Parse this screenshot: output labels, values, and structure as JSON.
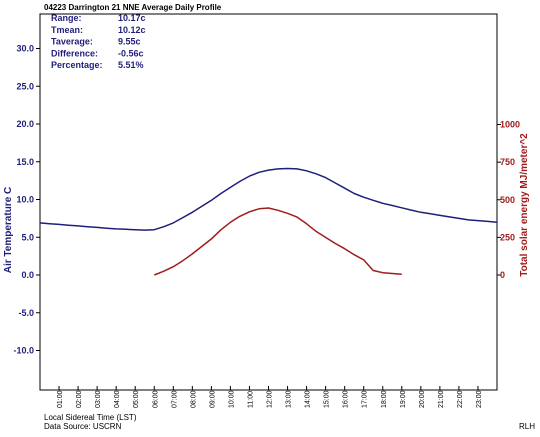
{
  "chart_data": {
    "type": "line",
    "title": "04223 Darrington 21 NNE Average Daily Profile",
    "stats": [
      {
        "label": "Range:",
        "value": "10.17c"
      },
      {
        "label": "Tmean:",
        "value": "10.12c"
      },
      {
        "label": "Taverage:",
        "value": "9.55c"
      },
      {
        "label": "Difference:",
        "value": "-0.56c"
      },
      {
        "label": "Percentage:",
        "value": "5.51%"
      }
    ],
    "xlabel": "Local Sidereal Time (LST)",
    "xticks": [
      "01:00",
      "02:00",
      "03:00",
      "04:00",
      "05:00",
      "06:00",
      "07:00",
      "08:00",
      "09:00",
      "10:00",
      "11:00",
      "12:00",
      "13:00",
      "14:00",
      "15:00",
      "16:00",
      "17:00",
      "18:00",
      "19:00",
      "20:00",
      "21:00",
      "22:00",
      "23:00"
    ],
    "xlim": [
      0,
      24
    ],
    "ylabel_left": "Air Temperature C",
    "ylim_left": [
      -15,
      30
    ],
    "yticks_left": [
      "30.0",
      "25.0",
      "20.0",
      "15.0",
      "10.0",
      "5.0",
      "0.0",
      "-5.0",
      "-10.0"
    ],
    "ylabel_right": "Total solar energy MJ/meter^2",
    "ylim_right": [
      0,
      1000
    ],
    "yticks_right": [
      "1000",
      "750",
      "500",
      "250",
      "0"
    ],
    "grid": false,
    "footer_source": "Data Source: USCRN",
    "footer_initials": "RLH",
    "colors": {
      "temperature": "#1f1f7a",
      "solar": "#a01c1c",
      "left_axis_text": "#1f1f7a",
      "right_axis_text": "#a01c1c"
    },
    "series": [
      {
        "axis": "left",
        "x": [
          0,
          0.5,
          1,
          1.5,
          2,
          2.5,
          3,
          3.5,
          4,
          4.5,
          5,
          5.5,
          6,
          6.5,
          7,
          7.5,
          8,
          8.5,
          9,
          9.5,
          10,
          10.5,
          11,
          11.5,
          12,
          12.5,
          13,
          13.5,
          14,
          14.5,
          15,
          15.5,
          16,
          16.5,
          17,
          17.5,
          18,
          18.5,
          19,
          19.5,
          20,
          20.5,
          21,
          21.5,
          22,
          22.5,
          23,
          23.5,
          24
        ],
        "values": [
          6.9,
          6.8,
          6.7,
          6.6,
          6.5,
          6.4,
          6.3,
          6.2,
          6.1,
          6.05,
          6.0,
          5.95,
          6.0,
          6.4,
          6.9,
          7.6,
          8.3,
          9.1,
          9.9,
          10.8,
          11.6,
          12.4,
          13.1,
          13.6,
          13.9,
          14.05,
          14.1,
          14.05,
          13.8,
          13.4,
          12.9,
          12.2,
          11.5,
          10.8,
          10.3,
          9.9,
          9.5,
          9.2,
          8.9,
          8.6,
          8.3,
          8.1,
          7.9,
          7.7,
          7.5,
          7.3,
          7.2,
          7.1,
          7.0
        ]
      },
      {
        "axis": "right",
        "x": [
          6,
          6.5,
          7,
          7.5,
          8,
          8.5,
          9,
          9.5,
          10,
          10.5,
          11,
          11.5,
          12,
          12.5,
          13,
          13.5,
          14,
          14.5,
          15,
          15.5,
          16,
          16.5,
          17,
          17.5,
          18,
          18.5,
          19
        ],
        "values": [
          0,
          25,
          55,
          95,
          140,
          190,
          240,
          300,
          350,
          390,
          420,
          440,
          445,
          430,
          410,
          385,
          340,
          290,
          250,
          210,
          175,
          135,
          100,
          30,
          15,
          10,
          5
        ]
      }
    ]
  }
}
